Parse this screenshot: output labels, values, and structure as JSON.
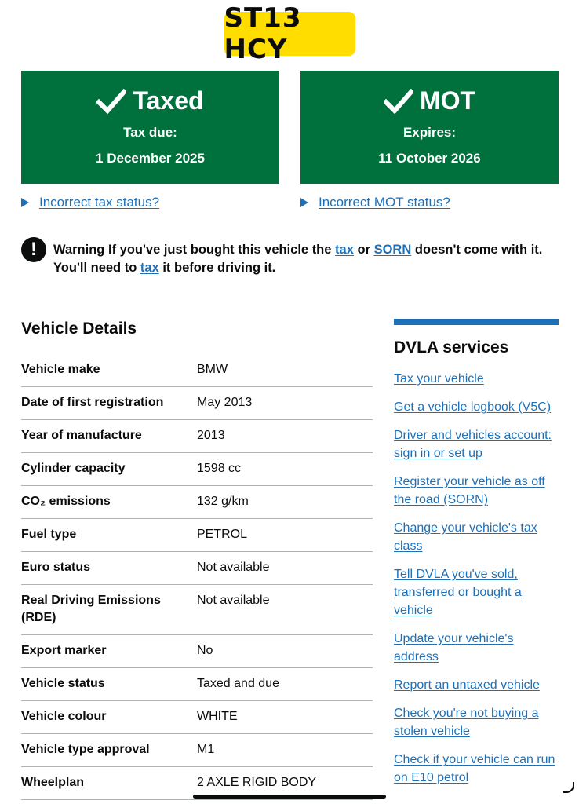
{
  "plate": "ST13 HCY",
  "tax": {
    "title": "Taxed",
    "sub": "Tax due:",
    "date": "1 December 2025",
    "link": "Incorrect tax status?"
  },
  "mot": {
    "title": "MOT",
    "sub": "Expires:",
    "date": "11 October 2026",
    "link": "Incorrect MOT status?"
  },
  "warning": {
    "label": "Warning",
    "part1": "If you've just bought this vehicle the",
    "link1": "tax",
    "part2": "or",
    "link2": "SORN",
    "part3": "doesn't come with it. You'll need to",
    "link3": "tax",
    "part4": "it before driving it."
  },
  "vehicle_details": {
    "title": "Vehicle Details",
    "rows": [
      {
        "key": "Vehicle make",
        "value": "BMW"
      },
      {
        "key": "Date of first registration",
        "value": "May 2013"
      },
      {
        "key": "Year of manufacture",
        "value": "2013"
      },
      {
        "key": "Cylinder capacity",
        "value": "1598 cc"
      },
      {
        "key": "CO₂ emissions",
        "value": "132 g/km"
      },
      {
        "key": "Fuel type",
        "value": "PETROL"
      },
      {
        "key": "Euro status",
        "value": "Not available"
      },
      {
        "key": "Real Driving Emissions (RDE)",
        "value": "Not available"
      },
      {
        "key": "Export marker",
        "value": "No"
      },
      {
        "key": "Vehicle status",
        "value": "Taxed and due"
      },
      {
        "key": "Vehicle colour",
        "value": "WHITE"
      },
      {
        "key": "Vehicle type approval",
        "value": "M1"
      },
      {
        "key": "Wheelplan",
        "value": "2 AXLE RIGID BODY"
      }
    ]
  },
  "dvla_services": {
    "title": "DVLA services",
    "links": [
      "Tax your vehicle",
      "Get a vehicle logbook (V5C)",
      "Driver and vehicles account: sign in or set up",
      "Register your vehicle as off the road (SORN)",
      "Change your vehicle's tax class",
      "Tell DVLA you've sold, transferred or bought a vehicle",
      "Update your vehicle's address",
      "Report an untaxed vehicle",
      "Check you're not buying a stolen vehicle",
      "Check if your vehicle can run on E10 petrol"
    ]
  },
  "colors": {
    "green": "#00703c",
    "plate": "#ffdd00",
    "link": "#1d70b8",
    "text": "#0b0c0c"
  }
}
